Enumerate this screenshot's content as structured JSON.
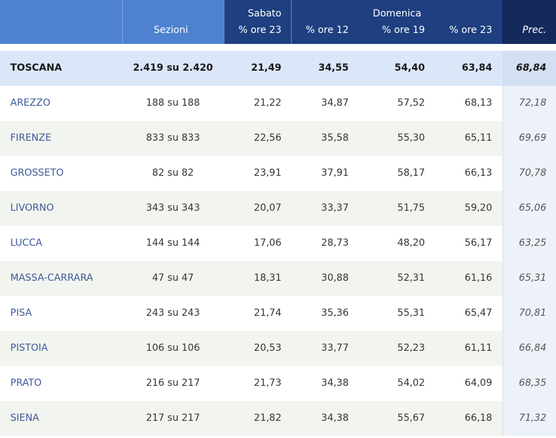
{
  "header": {
    "sezioni": "Sezioni",
    "sabato": "Sabato",
    "sabato_sub": "% ore 23",
    "domenica": "Domenica",
    "dom_12": "% ore 12",
    "dom_19": "% ore 19",
    "dom_23": "% ore 23",
    "prec": "Prec."
  },
  "rows": [
    {
      "name": "TOSCANA",
      "sezioni": "2.419 su 2.420",
      "sab23": "21,49",
      "dom12": "34,55",
      "dom19": "54,40",
      "dom23": "63,84",
      "prec": "68,84"
    },
    {
      "name": "AREZZO",
      "sezioni": "188 su 188",
      "sab23": "21,22",
      "dom12": "34,87",
      "dom19": "57,52",
      "dom23": "68,13",
      "prec": "72,18"
    },
    {
      "name": "FIRENZE",
      "sezioni": "833 su 833",
      "sab23": "22,56",
      "dom12": "35,58",
      "dom19": "55,30",
      "dom23": "65,11",
      "prec": "69,69"
    },
    {
      "name": "GROSSETO",
      "sezioni": "82 su 82",
      "sab23": "23,91",
      "dom12": "37,91",
      "dom19": "58,17",
      "dom23": "66,13",
      "prec": "70,78"
    },
    {
      "name": "LIVORNO",
      "sezioni": "343 su 343",
      "sab23": "20,07",
      "dom12": "33,37",
      "dom19": "51,75",
      "dom23": "59,20",
      "prec": "65,06"
    },
    {
      "name": "LUCCA",
      "sezioni": "144 su 144",
      "sab23": "17,06",
      "dom12": "28,73",
      "dom19": "48,20",
      "dom23": "56,17",
      "prec": "63,25"
    },
    {
      "name": "MASSA-CARRARA",
      "sezioni": "47 su 47",
      "sab23": "18,31",
      "dom12": "30,88",
      "dom19": "52,31",
      "dom23": "61,16",
      "prec": "65,31"
    },
    {
      "name": "PISA",
      "sezioni": "243 su 243",
      "sab23": "21,74",
      "dom12": "35,36",
      "dom19": "55,31",
      "dom23": "65,47",
      "prec": "70,81"
    },
    {
      "name": "PISTOIA",
      "sezioni": "106 su 106",
      "sab23": "20,53",
      "dom12": "33,77",
      "dom19": "52,23",
      "dom23": "61,11",
      "prec": "66,84"
    },
    {
      "name": "PRATO",
      "sezioni": "216 su 217",
      "sab23": "21,73",
      "dom12": "34,38",
      "dom19": "54,02",
      "dom23": "64,09",
      "prec": "68,35"
    },
    {
      "name": "SIENA",
      "sezioni": "217 su 217",
      "sab23": "21,82",
      "dom12": "34,38",
      "dom19": "55,67",
      "dom23": "66,18",
      "prec": "71,32"
    }
  ]
}
